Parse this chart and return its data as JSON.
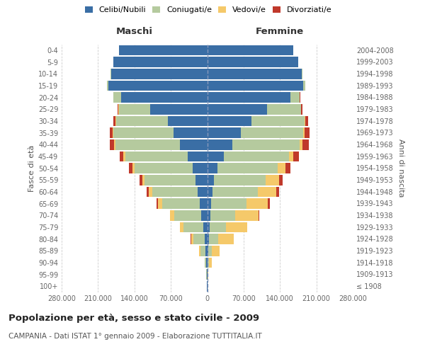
{
  "age_groups": [
    "100+",
    "95-99",
    "90-94",
    "85-89",
    "80-84",
    "75-79",
    "70-74",
    "65-69",
    "60-64",
    "55-59",
    "50-54",
    "45-49",
    "40-44",
    "35-39",
    "30-34",
    "25-29",
    "20-24",
    "15-19",
    "10-14",
    "5-9",
    "0-4"
  ],
  "birth_years": [
    "≤ 1908",
    "1909-1913",
    "1914-1918",
    "1919-1923",
    "1924-1928",
    "1929-1933",
    "1934-1938",
    "1939-1943",
    "1944-1948",
    "1949-1953",
    "1954-1958",
    "1959-1963",
    "1964-1968",
    "1969-1973",
    "1974-1978",
    "1979-1983",
    "1984-1988",
    "1989-1993",
    "1994-1998",
    "1999-2003",
    "2004-2008"
  ],
  "male_celibe": [
    500,
    800,
    1500,
    3000,
    5000,
    7000,
    11000,
    14000,
    18000,
    22000,
    28000,
    38000,
    52000,
    65000,
    75000,
    110000,
    165000,
    190000,
    185000,
    180000,
    170000
  ],
  "male_coniugato": [
    200,
    800,
    3000,
    10000,
    22000,
    38000,
    52000,
    72000,
    88000,
    98000,
    112000,
    120000,
    125000,
    115000,
    100000,
    60000,
    15000,
    3000,
    500,
    100,
    50
  ],
  "male_vedovo": [
    50,
    200,
    600,
    2000,
    4000,
    7000,
    8000,
    9000,
    7000,
    5000,
    4000,
    3000,
    2000,
    1500,
    1000,
    600,
    200,
    100,
    50,
    20,
    10
  ],
  "male_divorziato": [
    10,
    50,
    100,
    300,
    500,
    700,
    1200,
    2000,
    3500,
    5000,
    6500,
    7000,
    8000,
    6000,
    4000,
    2000,
    800,
    200,
    50,
    10,
    5
  ],
  "female_celibe": [
    300,
    600,
    1200,
    2000,
    3500,
    4500,
    6000,
    7000,
    10000,
    13000,
    20000,
    32000,
    48000,
    65000,
    85000,
    115000,
    160000,
    185000,
    182000,
    175000,
    165000
  ],
  "female_coniugato": [
    100,
    500,
    2000,
    7000,
    17000,
    32000,
    48000,
    68000,
    88000,
    100000,
    115000,
    125000,
    130000,
    120000,
    102000,
    65000,
    18000,
    3500,
    600,
    100,
    50
  ],
  "female_vedovo": [
    300,
    1500,
    5000,
    15000,
    30000,
    40000,
    45000,
    42000,
    35000,
    25000,
    16000,
    9000,
    5000,
    3000,
    1500,
    800,
    250,
    100,
    50,
    20,
    10
  ],
  "female_divorziato": [
    10,
    50,
    150,
    400,
    700,
    1000,
    1800,
    3000,
    5000,
    7000,
    9000,
    11000,
    12000,
    8500,
    5500,
    2500,
    1000,
    250,
    50,
    10,
    5
  ],
  "colors": {
    "celibe": "#3a6ea5",
    "coniugato": "#b5ca9e",
    "vedovo": "#f5c96a",
    "divorziato": "#c0392b"
  },
  "xlim": 280000,
  "xtick_vals": [
    -280000,
    -210000,
    -140000,
    -70000,
    0,
    70000,
    140000,
    210000,
    280000
  ],
  "xtick_labels": [
    "280.000",
    "210.000",
    "140.000",
    "70.000",
    "0",
    "70.000",
    "140.000",
    "210.000",
    "280.000"
  ],
  "title": "Popolazione per età, sesso e stato civile - 2009",
  "subtitle": "CAMPANIA - Dati ISTAT 1° gennaio 2009 - Elaborazione TUTTITALIA.IT",
  "ylabel_left": "Fasce di età",
  "ylabel_right": "Anni di nascita",
  "legend_labels": [
    "Celibi/Nubili",
    "Coniugati/e",
    "Vedovi/e",
    "Divorziati/e"
  ]
}
